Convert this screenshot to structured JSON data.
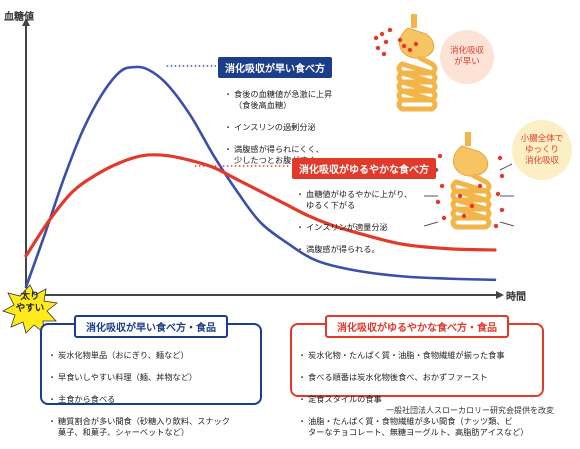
{
  "chart_data": {
    "type": "line",
    "ylabel": "血糖値",
    "xlabel": "時間",
    "series": [
      {
        "name": "消化吸収が早い食べ方",
        "color": "#3a4fa8",
        "points": [
          [
            0,
            0.0
          ],
          [
            0.04,
            0.22
          ],
          [
            0.08,
            0.45
          ],
          [
            0.12,
            0.65
          ],
          [
            0.16,
            0.8
          ],
          [
            0.2,
            0.9
          ],
          [
            0.23,
            0.92
          ],
          [
            0.26,
            0.91
          ],
          [
            0.3,
            0.85
          ],
          [
            0.35,
            0.72
          ],
          [
            0.4,
            0.55
          ],
          [
            0.45,
            0.4
          ],
          [
            0.5,
            0.27
          ],
          [
            0.56,
            0.18
          ],
          [
            0.62,
            0.11
          ],
          [
            0.7,
            0.07
          ],
          [
            0.8,
            0.045
          ],
          [
            0.9,
            0.035
          ],
          [
            1.0,
            0.03
          ]
        ]
      },
      {
        "name": "消化吸収がゆるやかな食べ方",
        "color": "#e23a2a",
        "points": [
          [
            0,
            0.13
          ],
          [
            0.05,
            0.28
          ],
          [
            0.1,
            0.4
          ],
          [
            0.15,
            0.47
          ],
          [
            0.2,
            0.52
          ],
          [
            0.25,
            0.55
          ],
          [
            0.3,
            0.55
          ],
          [
            0.35,
            0.53
          ],
          [
            0.4,
            0.5
          ],
          [
            0.45,
            0.45
          ],
          [
            0.5,
            0.4
          ],
          [
            0.55,
            0.35
          ],
          [
            0.6,
            0.3
          ],
          [
            0.65,
            0.26
          ],
          [
            0.7,
            0.23
          ],
          [
            0.8,
            0.18
          ],
          [
            0.9,
            0.16
          ],
          [
            1.0,
            0.155
          ]
        ]
      }
    ],
    "grid": false
  },
  "annotations": {
    "fast": {
      "tag": "消化吸収が早い食べ方",
      "bullets": [
        "食後の血糖値が急激に上昇\n（食後高血糖）",
        "インスリンの過剰分泌",
        "満腹感が得られにくく、\n少したつとお腹がすく"
      ]
    },
    "slow": {
      "tag": "消化吸収がゆるやかな食べ方",
      "bullets": [
        "血糖値がゆるやかに上がり、\nゆるく下がる",
        "インスリンが適量分泌",
        "満腹感が得られる。"
      ]
    }
  },
  "callouts": {
    "fast_circle": "消化吸収\nが早い",
    "slow_circle": "小腸全体で\nゆっくり\n消化吸収",
    "burst": "太り\nやすい"
  },
  "boxes": {
    "fast": {
      "title": "消化吸収が早い食べ方・食品",
      "items": [
        "炭水化物単品（おにぎり、麺など）",
        "早食いしやすい料理（麺、丼物など）",
        "主食から食べる",
        "糖質割合が多い間食（砂糖入り飲料、スナック\n菓子、和菓子、シャーベットなど）"
      ]
    },
    "slow": {
      "title": "消化吸収がゆるやかな食べ方・食品",
      "items": [
        "炭水化物・たんぱく質・油脂・食物繊維が揃った食事",
        "食べる順番は炭水化物後食べ、おかずファースト",
        "定食スタイルの食事",
        "油脂・たんぱく質・食物繊維が多い間食（ナッツ類、ビ\nターなチョコレート、無糖ヨーグルト、高脂肪アイスなど）"
      ]
    }
  },
  "credit": "一般社団法人スローカロリー研究会提供を改変",
  "colors": {
    "blue": "#1c3d8a",
    "red": "#e23a2a",
    "dot_blue": "#5a6fc0",
    "dot_red": "#e23a2a"
  }
}
